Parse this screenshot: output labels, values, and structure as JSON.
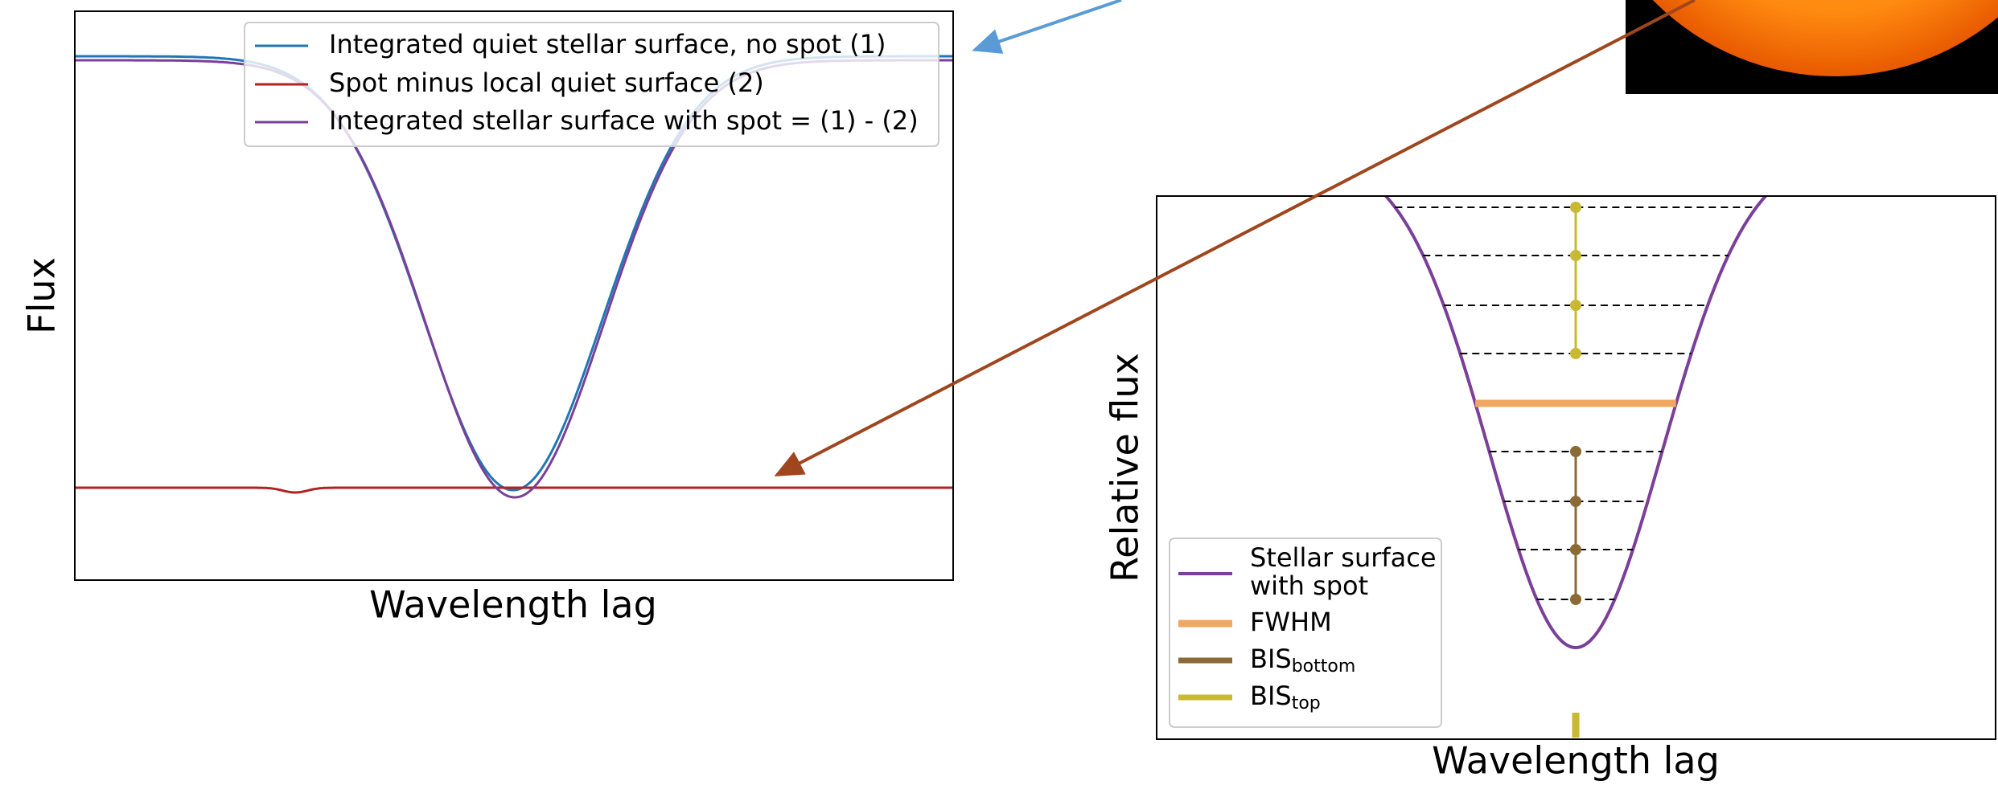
{
  "left_panel": {
    "legend": [
      "Integrated quiet stellar surface, no spot (1)",
      "Spot minus local quiet surface (2)",
      "Integrated stellar surface with spot = (1) - (2)"
    ],
    "xlabel": "Wavelength lag",
    "ylabel": "Flux"
  },
  "right_panel": {
    "legend": [
      {
        "lines": [
          "Stellar surface",
          "with spot"
        ]
      },
      {
        "text": "FWHM"
      },
      {
        "text": "BIS",
        "subscript": "bottom"
      },
      {
        "text": "BIS",
        "subscript": "top"
      }
    ],
    "xlabel": "Wavelength lag",
    "ylabel": "Relative flux"
  }
}
